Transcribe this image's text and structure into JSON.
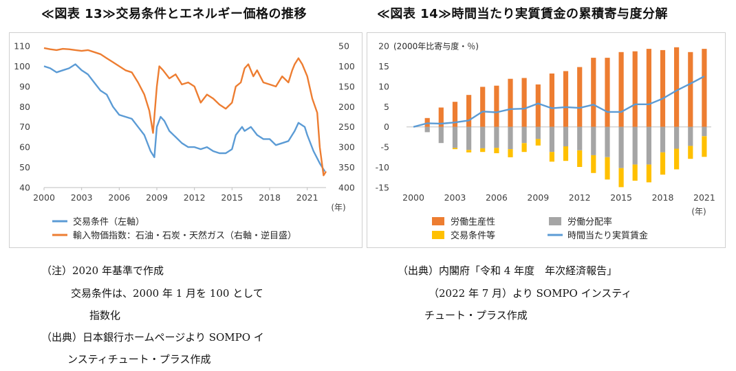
{
  "left": {
    "title": "≪図表 13≫交易条件とエネルギー価格の推移",
    "year_unit": "(年)",
    "notes": [
      "（注）2020 年基準で作成",
      "交易条件は、2000 年 1 月を 100 として",
      "指数化",
      "（出典）日本銀行ホームページより SOMPO イ",
      "ンスティチュート・プラス作成"
    ]
  },
  "right": {
    "title": "≪図表 14≫時間当たり実質賃金の累積寄与度分解",
    "unit_label": "(2000年比寄与度・％)",
    "year_unit": "(年)",
    "notes": [
      "（出典）内閣府「令和 4 年度　年次経済報告」",
      "（2022 年 7 月）より SOMPO インスティ",
      "チュート・プラス作成"
    ]
  },
  "chart_data": [
    {
      "type": "line",
      "x_ticks": [
        "2000",
        "2003",
        "2006",
        "2009",
        "2012",
        "2015",
        "2018",
        "2021"
      ],
      "yleft_ticks": [
        "110",
        "100",
        "90",
        "80",
        "70",
        "60",
        "50",
        "40"
      ],
      "yleft_lim": [
        40,
        110
      ],
      "yright_ticks": [
        "50",
        "100",
        "150",
        "200",
        "250",
        "300",
        "350",
        "400"
      ],
      "yright_lim": [
        50,
        400
      ],
      "yright_inverted": true,
      "grid": false,
      "legend_position": "bottom",
      "series": [
        {
          "name": "交易条件（左軸）",
          "axis": "left",
          "color": "#5b9bd5",
          "points": [
            [
              2000,
              100
            ],
            [
              2000.5,
              99
            ],
            [
              2001,
              97
            ],
            [
              2001.5,
              98
            ],
            [
              2002,
              99
            ],
            [
              2002.5,
              101
            ],
            [
              2003,
              98
            ],
            [
              2003.5,
              96
            ],
            [
              2004,
              92
            ],
            [
              2004.5,
              88
            ],
            [
              2005,
              86
            ],
            [
              2005.5,
              80
            ],
            [
              2006,
              76
            ],
            [
              2006.5,
              75
            ],
            [
              2007,
              74
            ],
            [
              2007.5,
              70
            ],
            [
              2008,
              66
            ],
            [
              2008.5,
              58
            ],
            [
              2008.8,
              55
            ],
            [
              2009,
              70
            ],
            [
              2009.3,
              75
            ],
            [
              2009.6,
              73
            ],
            [
              2010,
              68
            ],
            [
              2010.5,
              65
            ],
            [
              2011,
              62
            ],
            [
              2011.5,
              60
            ],
            [
              2012,
              60
            ],
            [
              2012.5,
              59
            ],
            [
              2013,
              60
            ],
            [
              2013.5,
              58
            ],
            [
              2014,
              57
            ],
            [
              2014.5,
              57
            ],
            [
              2015,
              59
            ],
            [
              2015.3,
              66
            ],
            [
              2015.8,
              70
            ],
            [
              2016,
              68
            ],
            [
              2016.5,
              70
            ],
            [
              2017,
              66
            ],
            [
              2017.5,
              64
            ],
            [
              2018,
              64
            ],
            [
              2018.5,
              61
            ],
            [
              2019,
              62
            ],
            [
              2019.5,
              63
            ],
            [
              2020,
              68
            ],
            [
              2020.3,
              72
            ],
            [
              2020.8,
              70
            ],
            [
              2021,
              66
            ],
            [
              2021.5,
              58
            ],
            [
              2022,
              52
            ],
            [
              2022.4,
              48
            ]
          ]
        },
        {
          "name": "輸入物価指数：石油・石炭・天然ガス（右軸・逆目盛）",
          "axis": "right",
          "color": "#ed7d31",
          "points": [
            [
              2000,
              55
            ],
            [
              2000.5,
              58
            ],
            [
              2001,
              60
            ],
            [
              2001.5,
              57
            ],
            [
              2002,
              58
            ],
            [
              2002.5,
              60
            ],
            [
              2003,
              62
            ],
            [
              2003.5,
              60
            ],
            [
              2004,
              65
            ],
            [
              2004.5,
              70
            ],
            [
              2005,
              80
            ],
            [
              2005.5,
              90
            ],
            [
              2006,
              100
            ],
            [
              2006.5,
              110
            ],
            [
              2007,
              115
            ],
            [
              2007.5,
              140
            ],
            [
              2008,
              170
            ],
            [
              2008.4,
              210
            ],
            [
              2008.7,
              265
            ],
            [
              2009,
              150
            ],
            [
              2009.2,
              100
            ],
            [
              2009.5,
              110
            ],
            [
              2010,
              130
            ],
            [
              2010.5,
              120
            ],
            [
              2011,
              145
            ],
            [
              2011.5,
              140
            ],
            [
              2012,
              150
            ],
            [
              2012.5,
              190
            ],
            [
              2013,
              170
            ],
            [
              2013.5,
              180
            ],
            [
              2014,
              195
            ],
            [
              2014.5,
              205
            ],
            [
              2015,
              190
            ],
            [
              2015.3,
              150
            ],
            [
              2015.7,
              140
            ],
            [
              2016,
              105
            ],
            [
              2016.3,
              95
            ],
            [
              2016.7,
              125
            ],
            [
              2017,
              110
            ],
            [
              2017.5,
              140
            ],
            [
              2018,
              145
            ],
            [
              2018.5,
              150
            ],
            [
              2019,
              125
            ],
            [
              2019.5,
              140
            ],
            [
              2019.8,
              110
            ],
            [
              2020,
              95
            ],
            [
              2020.3,
              80
            ],
            [
              2020.6,
              95
            ],
            [
              2021,
              125
            ],
            [
              2021.4,
              180
            ],
            [
              2021.8,
              215
            ],
            [
              2022,
              300
            ],
            [
              2022.3,
              370
            ],
            [
              2022.5,
              360
            ]
          ]
        }
      ]
    },
    {
      "type": "bar",
      "x_ticks": [
        "2000",
        "2003",
        "2006",
        "2009",
        "2012",
        "2015",
        "2018",
        "2021"
      ],
      "y_ticks": [
        "20",
        "15",
        "10",
        "5",
        "0",
        "-5",
        "-10",
        "-15"
      ],
      "ylim": [
        -15,
        20
      ],
      "grid": false,
      "legend_position": "bottom",
      "years": [
        2000,
        2001,
        2002,
        2003,
        2004,
        2005,
        2006,
        2007,
        2008,
        2009,
        2010,
        2011,
        2012,
        2013,
        2014,
        2015,
        2016,
        2017,
        2018,
        2019,
        2020,
        2021
      ],
      "series": [
        {
          "name": "労働生産性",
          "kind": "stack",
          "color": "#ed7d31",
          "values": [
            0,
            2.2,
            4.8,
            6.2,
            7.9,
            9.9,
            10.2,
            11.9,
            12.1,
            10.5,
            13.2,
            13.8,
            14.8,
            17.1,
            17.1,
            18.5,
            18.7,
            19.3,
            19.0,
            19.7,
            18.5,
            19.3
          ]
        },
        {
          "name": "労働分配率",
          "kind": "stack",
          "color": "#a5a5a5",
          "values": [
            0,
            -1.3,
            -4.0,
            -5.2,
            -5.7,
            -5.3,
            -5.2,
            -5.5,
            -4.0,
            -3.0,
            -6.2,
            -4.8,
            -5.8,
            -7.0,
            -7.5,
            -10.2,
            -9.3,
            -9.3,
            -6.3,
            -5.4,
            -4.7,
            -2.3
          ]
        },
        {
          "name": "交易条件等",
          "kind": "stack",
          "color": "#ffc000",
          "values": [
            0,
            0,
            0,
            -0.3,
            -0.6,
            -0.9,
            -1.3,
            -2.0,
            -2.2,
            -1.6,
            -2.4,
            -3.6,
            -4.1,
            -4.4,
            -5.5,
            -4.7,
            -4.0,
            -4.4,
            -5.5,
            -5.1,
            -3.2,
            -5.1
          ]
        },
        {
          "name": "時間当たり実質賃金",
          "kind": "line",
          "color": "#5b9bd5",
          "values": [
            0,
            0.9,
            0.8,
            1.1,
            1.6,
            3.8,
            3.6,
            4.4,
            4.5,
            5.8,
            4.6,
            4.9,
            4.7,
            5.5,
            3.7,
            3.7,
            5.6,
            5.6,
            7.0,
            9.0,
            10.7,
            12.5
          ]
        }
      ]
    }
  ]
}
